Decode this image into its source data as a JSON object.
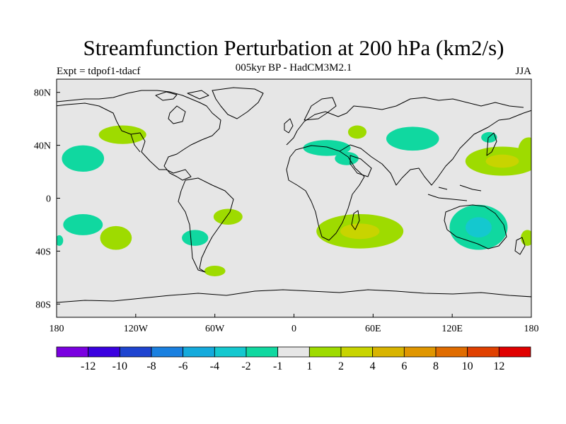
{
  "header": {
    "title": "Streamfunction Perturbation at 200 hPa (km2/s)",
    "subtitle": "005kyr BP - HadCM3M2.1",
    "experiment": "Expt = tdpof1-tdacf",
    "season": "JJA"
  },
  "map": {
    "background_color": "#e6e6e6",
    "lat_range": [
      -90,
      90
    ],
    "lon_range": [
      -180,
      180
    ],
    "lat_tick_labels": [
      "80N",
      "40N",
      "0",
      "40S",
      "80S"
    ],
    "lon_tick_labels": [
      "180",
      "120W",
      "60W",
      "0",
      "60E",
      "120E",
      "180"
    ],
    "anomaly_regions": [
      {
        "name": "north-pacific-high",
        "lon": -130,
        "lat": 48,
        "rx": 18,
        "ry": 7,
        "value": 1.5
      },
      {
        "name": "east-pacific-low",
        "lon": -160,
        "lat": 30,
        "rx": 16,
        "ry": 10,
        "value": -1.5
      },
      {
        "name": "dateline-high",
        "lon": 178,
        "lat": 36,
        "rx": 8,
        "ry": 10,
        "value": 1.5
      },
      {
        "name": "south-pacific-low",
        "lon": -160,
        "lat": -20,
        "rx": 15,
        "ry": 8,
        "value": -1.5
      },
      {
        "name": "south-pacific-high",
        "lon": -135,
        "lat": -30,
        "rx": 12,
        "ry": 9,
        "value": 1.5
      },
      {
        "name": "south-america-low",
        "lon": -75,
        "lat": -30,
        "rx": 10,
        "ry": 6,
        "value": -1.5
      },
      {
        "name": "south-atlantic-high",
        "lon": -50,
        "lat": -14,
        "rx": 11,
        "ry": 6,
        "value": 1.5
      },
      {
        "name": "drake-passage-high",
        "lon": -60,
        "lat": -55,
        "rx": 8,
        "ry": 4,
        "value": 1.5
      },
      {
        "name": "west-atlantic-edge-low",
        "lon": -178,
        "lat": -32,
        "rx": 3,
        "ry": 4,
        "value": -1.5
      },
      {
        "name": "mediterranean-low",
        "lon": 25,
        "lat": 38,
        "rx": 18,
        "ry": 6,
        "value": -1.5
      },
      {
        "name": "middle-east-low",
        "lon": 40,
        "lat": 30,
        "rx": 9,
        "ry": 5,
        "value": -1.5
      },
      {
        "name": "caspian-high",
        "lon": 48,
        "lat": 50,
        "rx": 7,
        "ry": 5,
        "value": 1.5
      },
      {
        "name": "central-asia-low",
        "lon": 90,
        "lat": 45,
        "rx": 20,
        "ry": 9,
        "value": -1.5
      },
      {
        "name": "east-asia-low",
        "lon": 148,
        "lat": 46,
        "rx": 6,
        "ry": 4,
        "value": -1.5
      },
      {
        "name": "west-pacific-high",
        "lon": 158,
        "lat": 28,
        "rx": 28,
        "ry": 11,
        "value": 2.5
      },
      {
        "name": "southern-africa-high",
        "lon": 50,
        "lat": -25,
        "rx": 33,
        "ry": 13,
        "value": 2.5
      },
      {
        "name": "australia-low",
        "lon": 140,
        "lat": -22,
        "rx": 22,
        "ry": 17,
        "value": -3
      },
      {
        "name": "new-zealand-high",
        "lon": 177,
        "lat": -30,
        "rx": 5,
        "ry": 6,
        "value": 1.5
      }
    ]
  },
  "colorbar": {
    "colors": [
      "#7a00e0",
      "#3a00e0",
      "#1e44d0",
      "#1a80e0",
      "#14aadc",
      "#14c8cf",
      "#10d8a0",
      "#e6e6e6",
      "#9edb00",
      "#c8d400",
      "#d8b400",
      "#e09600",
      "#e06c00",
      "#e04000",
      "#e00000"
    ],
    "labels": [
      "-12",
      "-10",
      "-8",
      "-6",
      "-4",
      "-2",
      "-1",
      "1",
      "2",
      "4",
      "6",
      "8",
      "10",
      "12"
    ]
  }
}
